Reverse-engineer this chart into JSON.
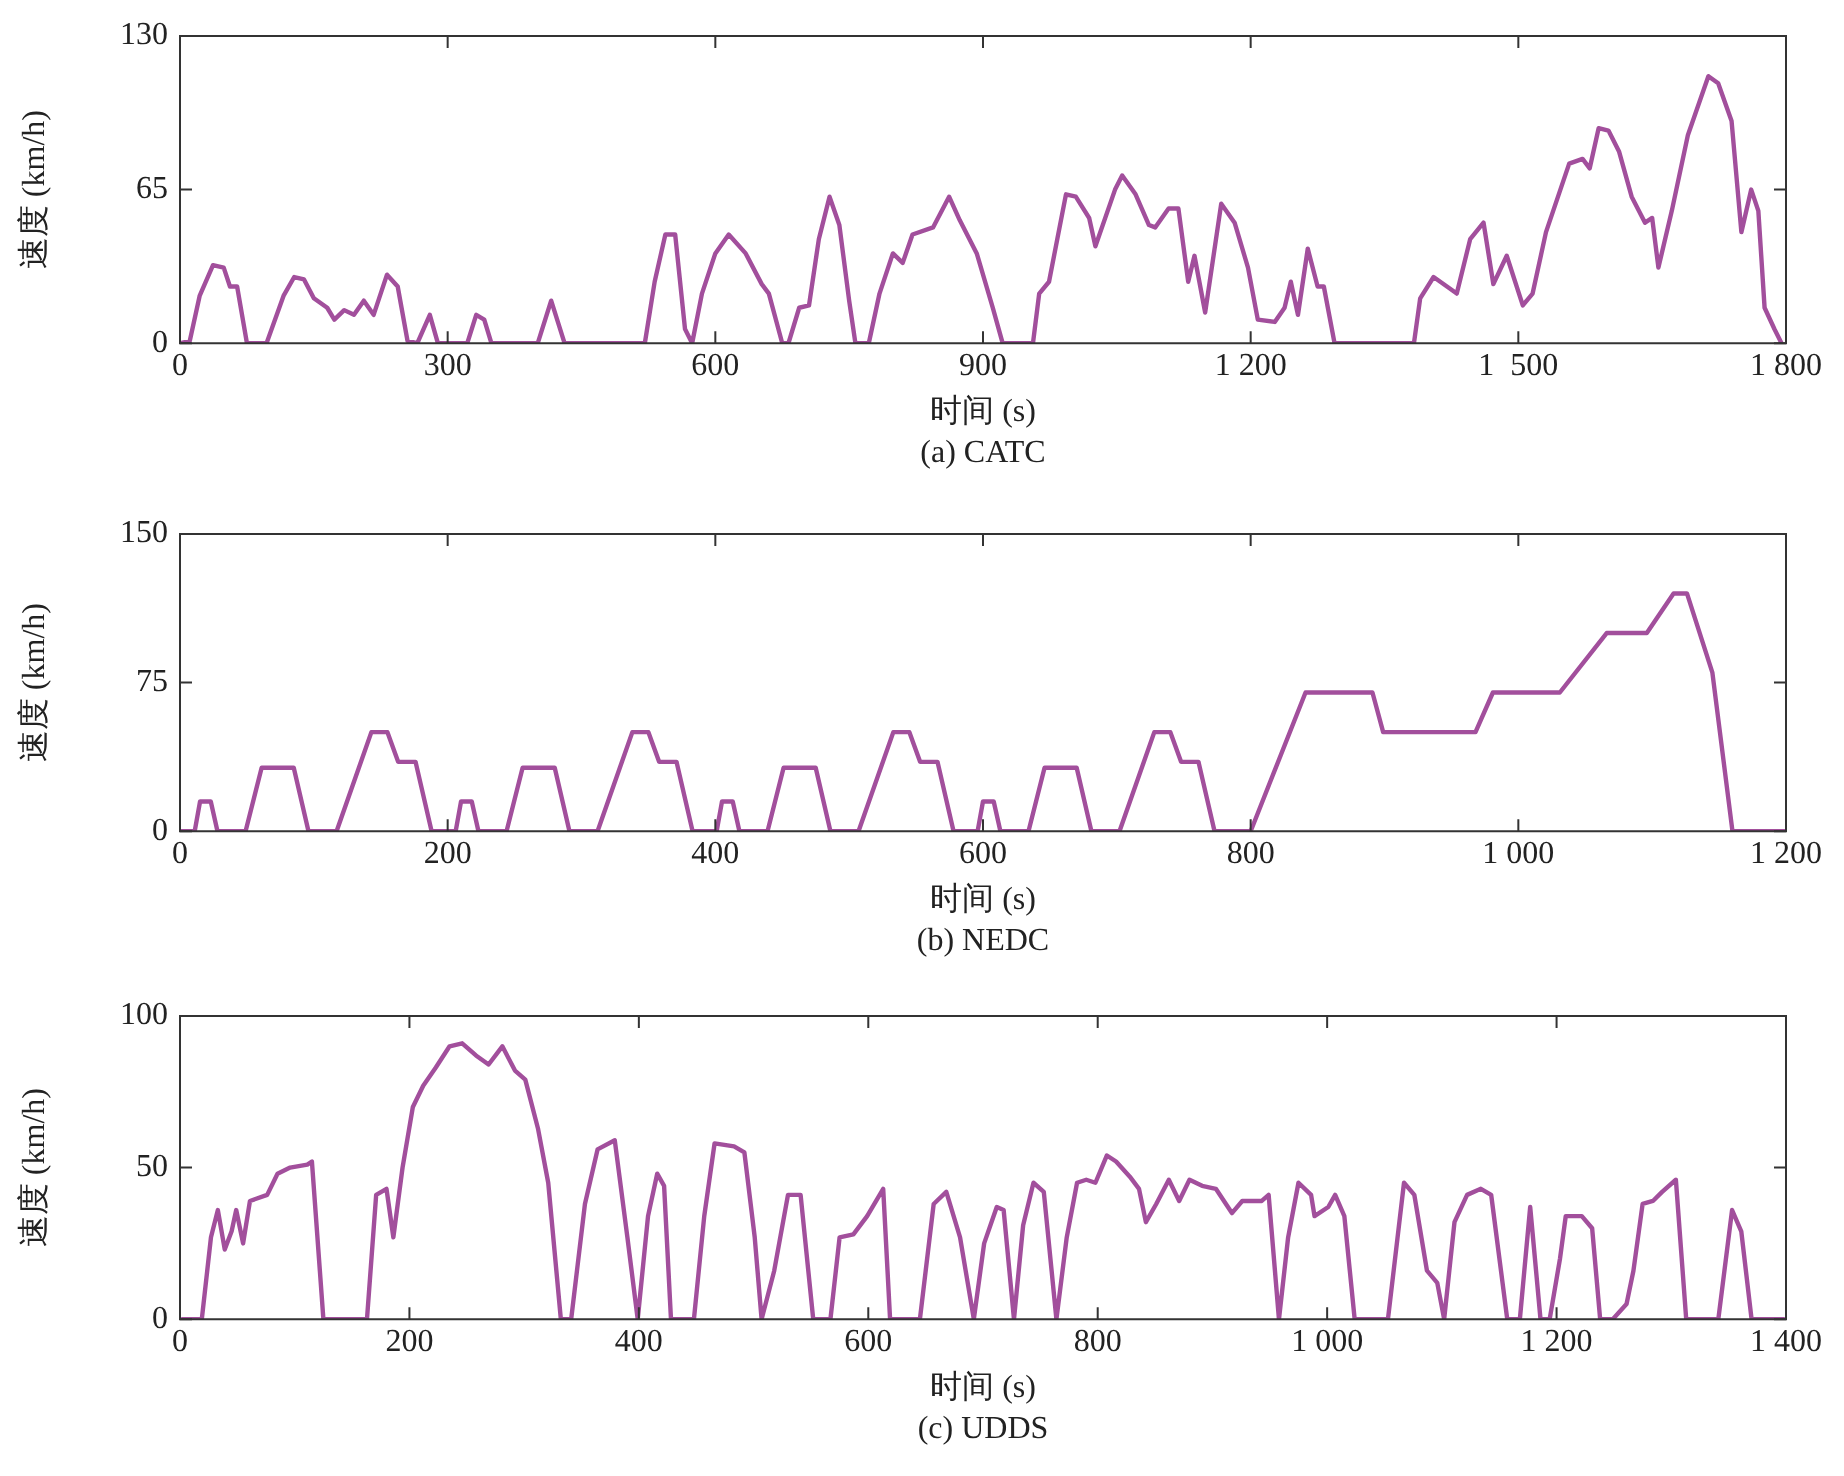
{
  "chart_data": [
    {
      "type": "line",
      "xlabel": "时间 (s)",
      "ylabel": "速度 (km/h)",
      "annotations": [
        "(a) CATC"
      ],
      "xlim": [
        0,
        1800
      ],
      "xticks": [
        0,
        300,
        600,
        900,
        {
          "value": 1200,
          "label": "1 200"
        },
        {
          "value": 1500,
          "label": "1  500"
        },
        {
          "value": 1800,
          "label": "1 800"
        }
      ],
      "ylim": [
        0,
        130
      ],
      "yticks": [
        0,
        65,
        130
      ],
      "grid": false,
      "legend": false,
      "marker": "none",
      "line_style": "solid",
      "series": [
        {
          "color": "#a24f9c",
          "x": [
            0,
            11,
            22,
            37,
            49,
            56,
            64,
            75,
            97,
            116,
            128,
            139,
            150,
            165,
            173,
            184,
            195,
            206,
            217,
            232,
            244,
            255,
            266,
            280,
            289,
            322,
            332,
            341,
            349,
            401,
            416,
            431,
            521,
            532,
            544,
            555,
            566,
            574,
            585,
            600,
            615,
            634,
            652,
            660,
            675,
            682,
            694,
            705,
            716,
            728,
            739,
            750,
            757,
            772,
            784,
            799,
            810,
            821,
            844,
            862,
            874,
            893,
            911,
            922,
            956,
            963,
            974,
            993,
            1004,
            1019,
            1026,
            1048,
            1056,
            1071,
            1086,
            1093,
            1108,
            1119,
            1130,
            1137,
            1149,
            1167,
            1182,
            1197,
            1208,
            1227,
            1238,
            1245,
            1253,
            1264,
            1275,
            1282,
            1294,
            1383,
            1390,
            1405,
            1420,
            1431,
            1446,
            1461,
            1472,
            1487,
            1505,
            1516,
            1531,
            1557,
            1572,
            1580,
            1590,
            1601,
            1613,
            1627,
            1642,
            1650,
            1657,
            1672,
            1690,
            1713,
            1724,
            1739,
            1750,
            1761,
            1769,
            1776,
            1787,
            1795
          ],
          "values": [
            0,
            1,
            20,
            33,
            32,
            24,
            24,
            0,
            0,
            20,
            28,
            27,
            19,
            15,
            10,
            14,
            12,
            18,
            12,
            29,
            24,
            1,
            0,
            12,
            0,
            0,
            12,
            10,
            0,
            0,
            18,
            0,
            0,
            26,
            46,
            46,
            6,
            0,
            21,
            38,
            46,
            38,
            25,
            21,
            0,
            0,
            15,
            16,
            44,
            62,
            50,
            18,
            0,
            0,
            21,
            38,
            34,
            46,
            49,
            62,
            52,
            38,
            15,
            0,
            0,
            21,
            26,
            63,
            62,
            53,
            41,
            65,
            71,
            63,
            50,
            49,
            57,
            57,
            26,
            37,
            13,
            59,
            51,
            32,
            10,
            9,
            15,
            26,
            12,
            40,
            24,
            24,
            0,
            0,
            19,
            28,
            24,
            21,
            44,
            51,
            25,
            37,
            16,
            21,
            47,
            76,
            78,
            74,
            91,
            90,
            81,
            62,
            51,
            53,
            32,
            56,
            88,
            113,
            110,
            94,
            47,
            65,
            56,
            15,
            6,
            0
          ]
        }
      ]
    },
    {
      "type": "line",
      "xlabel": "时间 (s)",
      "ylabel": "速度 (km/h)",
      "annotations": [
        "(b) NEDC"
      ],
      "xlim": [
        0,
        1200
      ],
      "xticks": [
        0,
        200,
        400,
        600,
        800,
        {
          "value": 1000,
          "label": "1 000"
        },
        {
          "value": 1200,
          "label": "1 200"
        }
      ],
      "ylim": [
        0,
        150
      ],
      "yticks": [
        0,
        75,
        150
      ],
      "grid": false,
      "legend": false,
      "marker": "none",
      "line_style": "solid",
      "series": [
        {
          "color": "#a24f9c",
          "x": [
            0,
            11,
            15,
            23,
            28,
            49,
            61,
            85,
            96,
            117,
            143,
            155,
            163,
            176,
            188,
            206,
            210,
            218,
            223,
            244,
            256,
            280,
            291,
            312,
            338,
            350,
            358,
            371,
            383,
            401,
            405,
            413,
            418,
            439,
            451,
            475,
            486,
            507,
            533,
            545,
            553,
            566,
            578,
            596,
            600,
            608,
            613,
            634,
            646,
            670,
            681,
            702,
            728,
            740,
            748,
            761,
            773,
            800,
            841,
            891,
            899,
            968,
            981,
            1031,
            1066,
            1096,
            1116,
            1126,
            1145,
            1160,
            1180,
            1200
          ],
          "values": [
            0,
            0,
            15,
            15,
            0,
            0,
            32,
            32,
            0,
            0,
            50,
            50,
            35,
            35,
            0,
            0,
            15,
            15,
            0,
            0,
            32,
            32,
            0,
            0,
            50,
            50,
            35,
            35,
            0,
            0,
            15,
            15,
            0,
            0,
            32,
            32,
            0,
            0,
            50,
            50,
            35,
            35,
            0,
            0,
            15,
            15,
            0,
            0,
            32,
            32,
            0,
            0,
            50,
            50,
            35,
            35,
            0,
            0,
            70,
            70,
            50,
            50,
            70,
            70,
            100,
            100,
            120,
            120,
            80,
            0,
            0,
            0
          ]
        }
      ]
    },
    {
      "type": "line",
      "xlabel": "时间 (s)",
      "ylabel": "速度 (km/h)",
      "annotations": [
        "(c) UDDS"
      ],
      "xlim": [
        0,
        1400
      ],
      "xticks": [
        0,
        200,
        400,
        600,
        800,
        {
          "value": 1000,
          "label": "1 000"
        },
        {
          "value": 1200,
          "label": "1 200"
        },
        {
          "value": 1400,
          "label": "1 400"
        }
      ],
      "ylim": [
        0,
        100
      ],
      "yticks": [
        0,
        50,
        100
      ],
      "grid": false,
      "legend": false,
      "marker": "none",
      "line_style": "solid",
      "series": [
        {
          "color": "#a24f9c",
          "x": [
            1,
            19,
            27,
            33,
            39,
            45,
            49,
            55,
            61,
            76,
            85,
            96,
            111,
            115,
            125,
            163,
            171,
            180,
            186,
            194,
            203,
            212,
            223,
            235,
            246,
            258,
            269,
            281,
            292,
            301,
            312,
            321,
            332,
            341,
            353,
            364,
            379,
            390,
            399,
            408,
            416,
            422,
            428,
            448,
            457,
            466,
            483,
            492,
            501,
            507,
            518,
            530,
            541,
            552,
            567,
            575,
            587,
            599,
            613,
            619,
            645,
            657,
            668,
            680,
            692,
            701,
            712,
            718,
            727,
            735,
            744,
            753,
            764,
            773,
            782,
            790,
            798,
            808,
            816,
            828,
            836,
            842,
            851,
            862,
            871,
            880,
            891,
            903,
            917,
            926,
            943,
            949,
            958,
            966,
            975,
            986,
            989,
            1001,
            1007,
            1015,
            1024,
            1053,
            1067,
            1076,
            1087,
            1096,
            1102,
            1111,
            1122,
            1134,
            1143,
            1157,
            1168,
            1177,
            1186,
            1194,
            1203,
            1208,
            1222,
            1231,
            1238,
            1249,
            1261,
            1267,
            1275,
            1284,
            1292,
            1304,
            1313,
            1341,
            1353,
            1361,
            1370,
            1399
          ],
          "values": [
            0,
            0,
            27,
            36,
            23,
            29,
            36,
            25,
            39,
            41,
            48,
            50,
            51,
            52,
            0,
            0,
            41,
            43,
            27,
            50,
            70,
            77,
            83,
            90,
            91,
            87,
            84,
            90,
            82,
            79,
            63,
            45,
            0,
            0,
            38,
            56,
            59,
            27,
            0,
            34,
            48,
            44,
            0,
            0,
            34,
            58,
            57,
            55,
            27,
            0,
            16,
            41,
            41,
            0,
            0,
            27,
            28,
            34,
            43,
            0,
            0,
            38,
            42,
            27,
            0,
            25,
            37,
            36,
            0,
            31,
            45,
            42,
            0,
            27,
            45,
            46,
            45,
            54,
            52,
            47,
            43,
            32,
            38,
            46,
            39,
            46,
            44,
            43,
            35,
            39,
            39,
            41,
            0,
            27,
            45,
            41,
            34,
            37,
            41,
            34,
            0,
            0,
            45,
            41,
            16,
            12,
            0,
            32,
            41,
            43,
            41,
            0,
            0,
            37,
            0,
            0,
            20,
            34,
            34,
            30,
            0,
            0,
            5,
            16,
            38,
            39,
            42,
            46,
            0,
            0,
            36,
            29,
            0,
            0
          ]
        }
      ]
    }
  ]
}
